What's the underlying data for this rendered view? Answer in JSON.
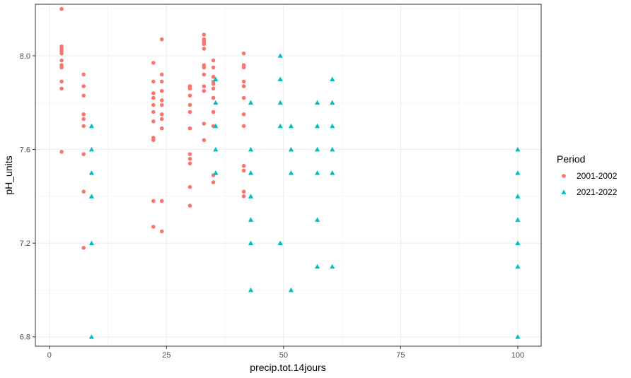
{
  "chart_data": {
    "type": "scatter",
    "xlabel": "precip.tot.14jours",
    "ylabel": "pH_units",
    "xlim": [
      -3,
      105
    ],
    "ylim": [
      6.76,
      8.22
    ],
    "xticks": [
      0,
      25,
      50,
      75,
      100
    ],
    "yticks": [
      6.8,
      7.2,
      7.6,
      8.0
    ],
    "xtick_labels": [
      "0",
      "25",
      "50",
      "75",
      "100"
    ],
    "ytick_labels": [
      "6.8",
      "7.2",
      "7.6",
      "8.0"
    ],
    "grid": true,
    "legend": {
      "title": "Period",
      "position": "right"
    },
    "series": [
      {
        "name": "2001-2002",
        "color": "#F8766D",
        "marker": "circle",
        "points": [
          [
            2.6,
            8.2
          ],
          [
            2.6,
            8.04
          ],
          [
            2.6,
            8.03
          ],
          [
            2.6,
            8.02
          ],
          [
            2.6,
            8.01
          ],
          [
            2.6,
            7.98
          ],
          [
            2.6,
            7.96
          ],
          [
            2.6,
            7.95
          ],
          [
            2.6,
            7.89
          ],
          [
            2.6,
            7.86
          ],
          [
            2.6,
            7.59
          ],
          [
            7.3,
            7.92
          ],
          [
            7.3,
            7.87
          ],
          [
            7.3,
            7.83
          ],
          [
            7.3,
            7.75
          ],
          [
            7.3,
            7.73
          ],
          [
            7.3,
            7.7
          ],
          [
            7.3,
            7.58
          ],
          [
            7.3,
            7.42
          ],
          [
            7.3,
            7.18
          ],
          [
            22.2,
            7.97
          ],
          [
            22.2,
            7.89
          ],
          [
            22.2,
            7.84
          ],
          [
            22.2,
            7.82
          ],
          [
            22.2,
            7.79
          ],
          [
            22.2,
            7.76
          ],
          [
            22.2,
            7.72
          ],
          [
            22.2,
            7.65
          ],
          [
            22.2,
            7.64
          ],
          [
            22.2,
            7.38
          ],
          [
            22.2,
            7.27
          ],
          [
            24,
            8.07
          ],
          [
            24,
            7.92
          ],
          [
            24,
            7.89
          ],
          [
            24,
            7.85
          ],
          [
            24,
            7.81
          ],
          [
            24,
            7.79
          ],
          [
            24,
            7.75
          ],
          [
            24,
            7.73
          ],
          [
            24,
            7.69
          ],
          [
            24,
            7.38
          ],
          [
            24,
            7.25
          ],
          [
            30,
            7.87
          ],
          [
            30,
            7.86
          ],
          [
            30,
            7.83
          ],
          [
            30,
            7.79
          ],
          [
            30,
            7.76
          ],
          [
            30,
            7.69
          ],
          [
            30,
            7.58
          ],
          [
            30,
            7.56
          ],
          [
            30,
            7.54
          ],
          [
            30,
            7.44
          ],
          [
            30,
            7.36
          ],
          [
            33,
            8.09
          ],
          [
            33,
            8.07
          ],
          [
            33,
            8.06
          ],
          [
            33,
            8.05
          ],
          [
            33,
            8.03
          ],
          [
            33,
            7.96
          ],
          [
            33,
            7.95
          ],
          [
            33,
            7.92
          ],
          [
            33,
            7.87
          ],
          [
            33,
            7.85
          ],
          [
            33,
            7.71
          ],
          [
            33,
            7.64
          ],
          [
            35,
            7.98
          ],
          [
            35,
            7.95
          ],
          [
            35,
            7.91
          ],
          [
            35,
            7.89
          ],
          [
            35,
            7.88
          ],
          [
            35,
            7.86
          ],
          [
            35,
            7.82
          ],
          [
            35,
            7.76
          ],
          [
            35,
            7.7
          ],
          [
            35,
            7.49
          ],
          [
            35,
            7.46
          ],
          [
            41.5,
            8.01
          ],
          [
            41.5,
            7.96
          ],
          [
            41.5,
            7.95
          ],
          [
            41.5,
            7.89
          ],
          [
            41.5,
            7.87
          ],
          [
            41.5,
            7.82
          ],
          [
            41.5,
            7.75
          ],
          [
            41.5,
            7.7
          ],
          [
            41.5,
            7.53
          ],
          [
            41.5,
            7.51
          ],
          [
            41.5,
            7.42
          ],
          [
            41.5,
            7.4
          ]
        ]
      },
      {
        "name": "2021-2022",
        "color": "#00BFC4",
        "marker": "triangle",
        "points": [
          [
            9,
            7.7
          ],
          [
            9,
            7.6
          ],
          [
            9,
            7.5
          ],
          [
            9,
            7.4
          ],
          [
            9,
            7.2
          ],
          [
            9,
            6.8
          ],
          [
            35.5,
            7.9
          ],
          [
            35.5,
            7.8
          ],
          [
            35.5,
            7.7
          ],
          [
            35.5,
            7.6
          ],
          [
            35.5,
            7.5
          ],
          [
            43,
            7.8
          ],
          [
            43,
            7.6
          ],
          [
            43,
            7.5
          ],
          [
            43,
            7.4
          ],
          [
            43,
            7.3
          ],
          [
            43,
            7.2
          ],
          [
            43,
            7.0
          ],
          [
            49.3,
            8.0
          ],
          [
            49.3,
            7.9
          ],
          [
            49.3,
            7.8
          ],
          [
            49.3,
            7.7
          ],
          [
            49.3,
            7.2
          ],
          [
            51.6,
            7.7
          ],
          [
            51.6,
            7.6
          ],
          [
            51.6,
            7.5
          ],
          [
            51.6,
            7.0
          ],
          [
            57.2,
            7.8
          ],
          [
            57.2,
            7.7
          ],
          [
            57.2,
            7.6
          ],
          [
            57.2,
            7.5
          ],
          [
            57.2,
            7.3
          ],
          [
            57.2,
            7.1
          ],
          [
            60.4,
            7.9
          ],
          [
            60.4,
            7.8
          ],
          [
            60.4,
            7.7
          ],
          [
            60.4,
            7.6
          ],
          [
            60.4,
            7.5
          ],
          [
            60.4,
            7.1
          ],
          [
            100,
            7.6
          ],
          [
            100,
            7.5
          ],
          [
            100,
            7.4
          ],
          [
            100,
            7.3
          ],
          [
            100,
            7.2
          ],
          [
            100,
            7.1
          ],
          [
            100,
            6.8
          ]
        ]
      }
    ]
  }
}
